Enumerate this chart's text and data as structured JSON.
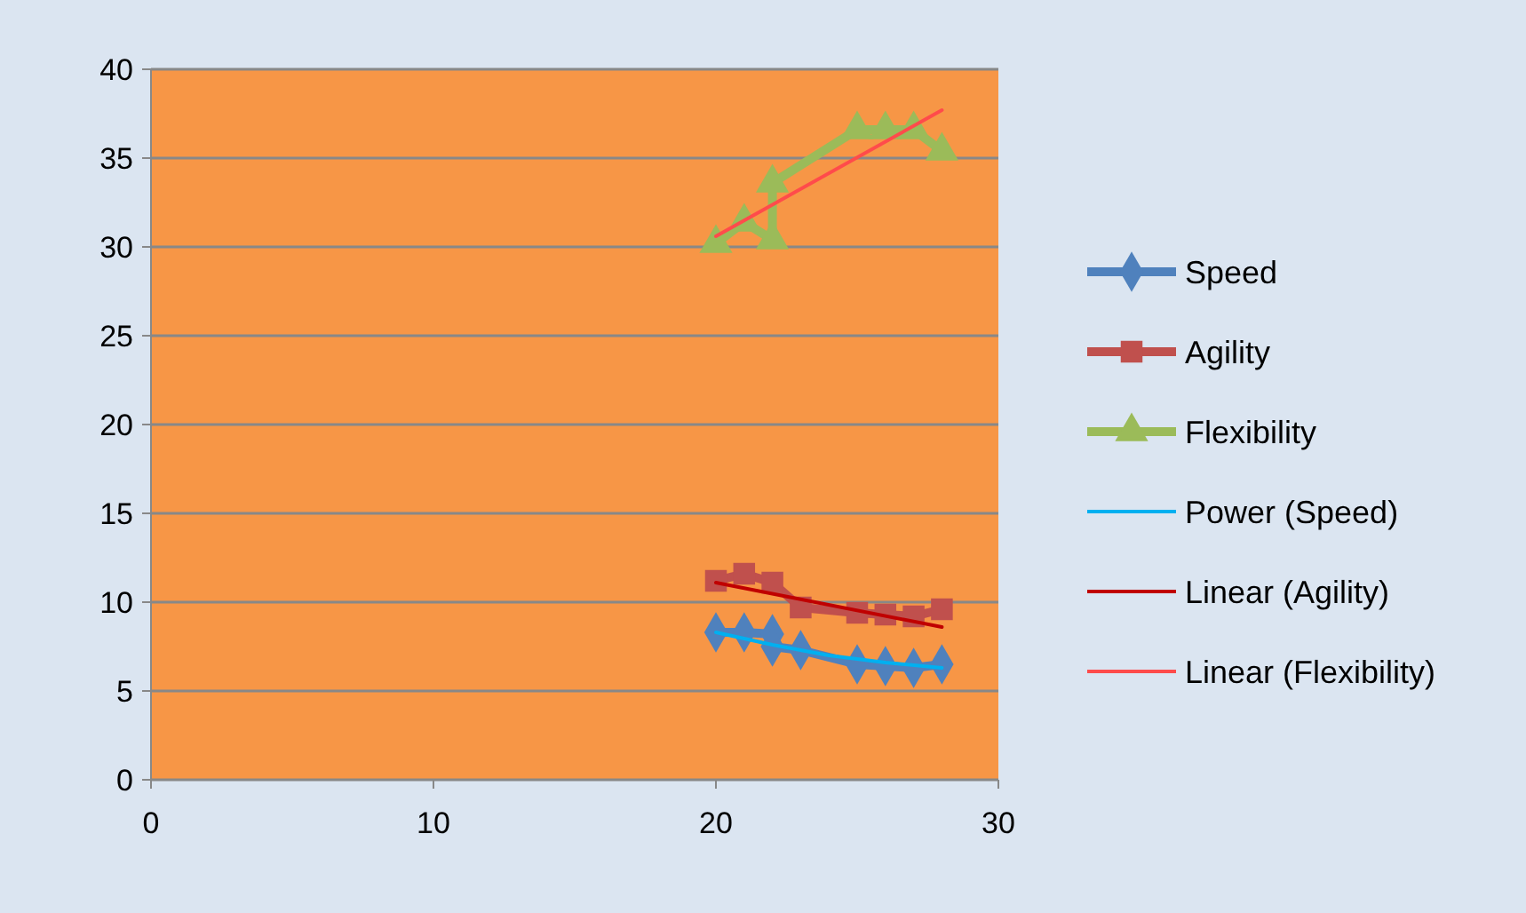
{
  "chart_data": {
    "type": "line",
    "xlim": [
      0,
      30
    ],
    "xticks": [
      0,
      10,
      20,
      30
    ],
    "ylim": [
      0,
      40
    ],
    "yticks": [
      0,
      5,
      10,
      15,
      20,
      25,
      30,
      35,
      40
    ],
    "grid": "y",
    "legend": "right",
    "series": [
      {
        "name": "Speed",
        "color": "#4f81bd",
        "marker": "diamond",
        "x": [
          20,
          21,
          22,
          22,
          23,
          25,
          26,
          27,
          28
        ],
        "values": [
          8.3,
          8.3,
          8.2,
          7.5,
          7.3,
          6.5,
          6.4,
          6.3,
          6.5
        ]
      },
      {
        "name": "Agility",
        "color": "#c0504d",
        "marker": "square",
        "x": [
          20,
          21,
          22,
          23,
          25,
          26,
          27,
          28
        ],
        "values": [
          11.2,
          11.6,
          11.1,
          9.7,
          9.4,
          9.3,
          9.2,
          9.6
        ]
      },
      {
        "name": "Flexibility",
        "color": "#9bbb59",
        "marker": "triangle",
        "x": [
          20,
          21,
          22,
          22,
          25,
          26,
          27,
          28
        ],
        "values": [
          30.2,
          31.4,
          30.4,
          33.6,
          36.6,
          36.6,
          36.6,
          35.4
        ]
      },
      {
        "name": "Power (Speed)",
        "color": "#00b0f0",
        "marker": "none",
        "x": [
          20,
          22,
          24,
          26,
          28
        ],
        "values": [
          8.3,
          7.6,
          7.0,
          6.6,
          6.3
        ]
      },
      {
        "name": "Linear (Agility)",
        "color": "#c00000",
        "marker": "none",
        "x": [
          20,
          28
        ],
        "values": [
          11.1,
          8.6
        ]
      },
      {
        "name": "Linear (Flexibility)",
        "color": "#ff4b4b",
        "marker": "none",
        "x": [
          20,
          28
        ],
        "values": [
          30.6,
          37.7
        ]
      }
    ]
  }
}
